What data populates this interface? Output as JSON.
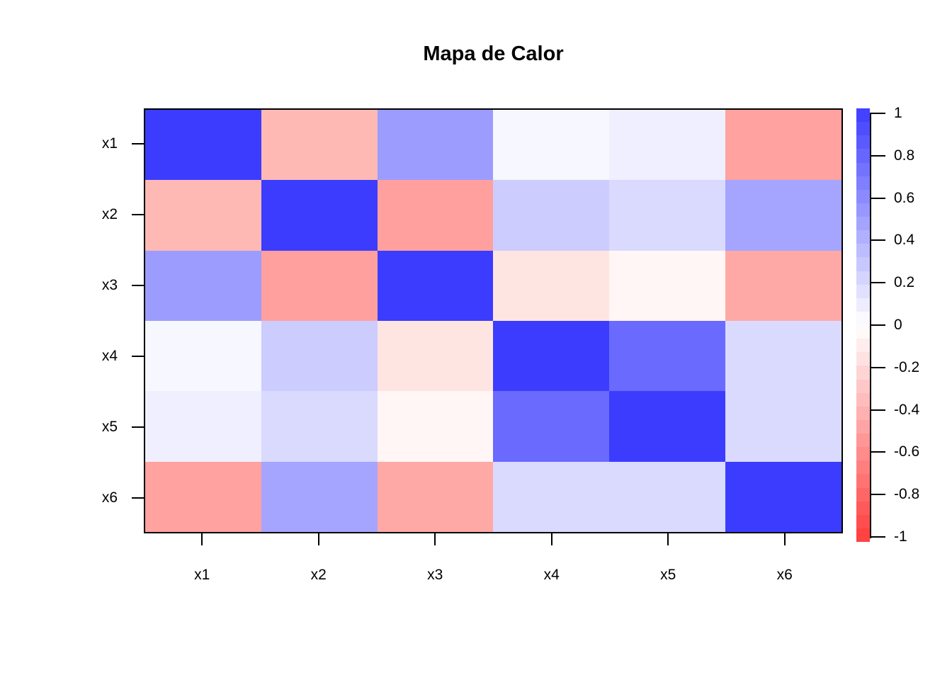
{
  "chart_data": {
    "type": "heatmap",
    "title": "Mapa de Calor",
    "x_categories": [
      "x1",
      "x2",
      "x3",
      "x4",
      "x5",
      "x6"
    ],
    "y_categories": [
      "x1",
      "x2",
      "x3",
      "x4",
      "x5",
      "x6"
    ],
    "matrix": [
      [
        1,
        -0.35,
        0.5,
        0.05,
        0.1,
        -0.5
      ],
      [
        -0.35,
        1,
        -0.5,
        0.25,
        0.2,
        0.45
      ],
      [
        0.5,
        -0.5,
        1,
        -0.15,
        -0.05,
        -0.45
      ],
      [
        0.05,
        0.25,
        -0.15,
        1,
        0.78,
        0.2
      ],
      [
        0.1,
        0.2,
        -0.05,
        0.78,
        1,
        0.2
      ],
      [
        -0.5,
        0.45,
        -0.45,
        0.2,
        0.2,
        1
      ]
    ],
    "cell_colors": [
      [
        "#3C3CFF",
        "#FFB9B5",
        "#9C9CFF",
        "#F7F7FF",
        "#EFEFFF",
        "#FFA2A0"
      ],
      [
        "#FFB9B5",
        "#3C3CFF",
        "#FFA09E",
        "#CCCCFF",
        "#DADAFF",
        "#A5A5FF"
      ],
      [
        "#9C9CFF",
        "#FFA09E",
        "#3C3CFF",
        "#FFE5E2",
        "#FFF6F5",
        "#FFA9A7"
      ],
      [
        "#F7F7FF",
        "#CCCCFF",
        "#FFE5E2",
        "#3C3CFF",
        "#6A6AFF",
        "#DADAFF"
      ],
      [
        "#EFEFFF",
        "#DADAFF",
        "#FFF6F5",
        "#6A6AFF",
        "#3C3CFF",
        "#DADAFF"
      ],
      [
        "#FFA2A0",
        "#A5A5FF",
        "#FFA9A7",
        "#DADAFF",
        "#DADAFF",
        "#3C3CFF"
      ]
    ],
    "value_range": [
      -1,
      1
    ],
    "colormap": {
      "negative": "#FF3C3C",
      "zero": "#FFFFFF",
      "positive": "#3C3CFF",
      "steps": 32
    },
    "legend": {
      "position": "right",
      "tick_labels": [
        "1",
        "0.8",
        "0.6",
        "0.4",
        "0.2",
        "0",
        "-0.2",
        "-0.4",
        "-0.6",
        "-0.8",
        "-1"
      ]
    },
    "axis_color": "#000000",
    "background": "#FFFFFF",
    "grid": false
  }
}
